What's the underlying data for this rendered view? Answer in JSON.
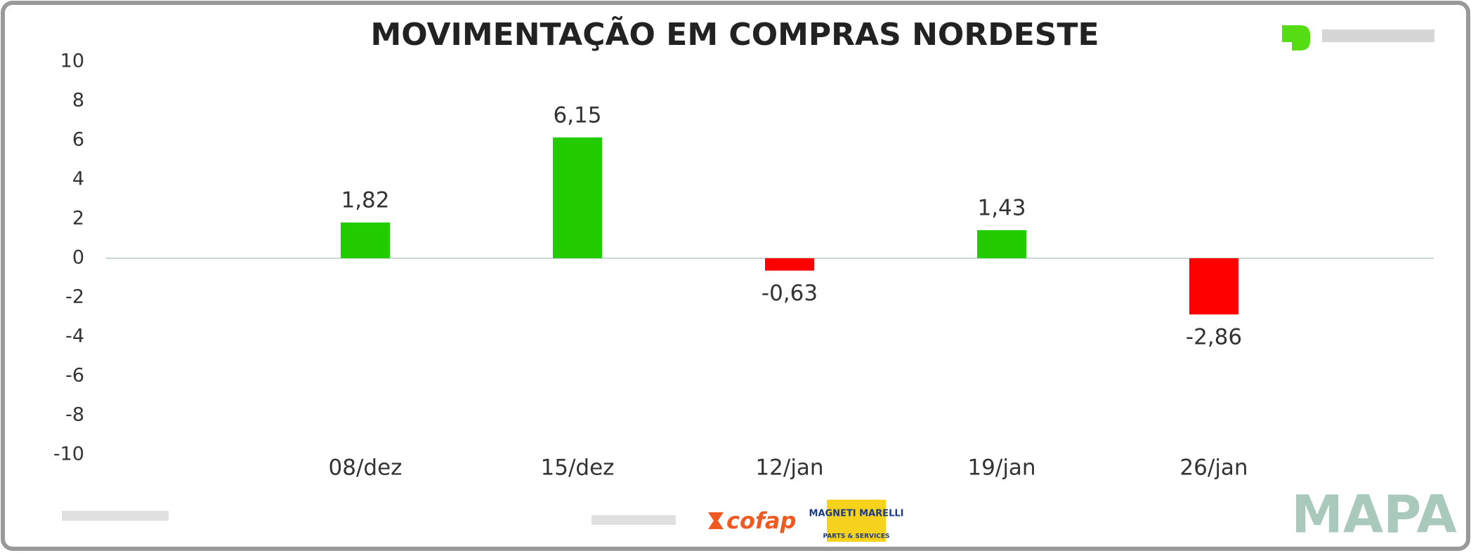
{
  "chart_data": {
    "type": "bar",
    "title": "MOVIMENTAÇÃO EM COMPRAS NORDESTE",
    "categories": [
      "08/dez",
      "15/dez",
      "12/jan",
      "19/jan",
      "26/jan"
    ],
    "values": [
      1.82,
      6.15,
      -0.63,
      1.43,
      -2.86
    ],
    "value_labels": [
      "1,82",
      "6,15",
      "-0,63",
      "1,43",
      "-2,86"
    ],
    "colors": [
      "#22cc00",
      "#22cc00",
      "#ff0000",
      "#22cc00",
      "#ff0000"
    ],
    "ylim": [
      -10,
      10
    ],
    "yticks": [
      -10,
      -8,
      -6,
      -4,
      -2,
      0,
      2,
      4,
      6,
      8,
      10
    ]
  },
  "logos": {
    "mapa": "MAPA",
    "cofap": "cofap",
    "marelli": "MAGNETI MARELLI",
    "marelli_sub": "PARTS & SERVICES"
  }
}
